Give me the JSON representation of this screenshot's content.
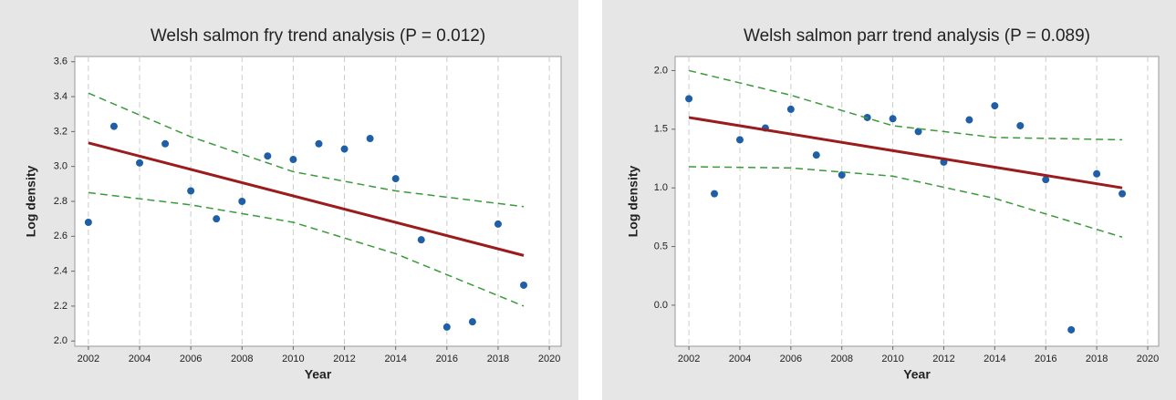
{
  "chart_data": [
    {
      "type": "scatter",
      "title": "Welsh salmon fry trend analysis (P = 0.012)",
      "x_label": "Year",
      "y_label": "Log density",
      "xlim": [
        2001.47,
        2020.46
      ],
      "ylim": [
        1.97,
        3.63
      ],
      "xticks": [
        2002,
        2004,
        2006,
        2008,
        2010,
        2012,
        2014,
        2016,
        2018,
        2020
      ],
      "yticks": [
        {
          "value": 2,
          "label": "2.0"
        },
        {
          "value": 2.2,
          "label": "2.2"
        },
        {
          "value": 2.4,
          "label": "2.4"
        },
        {
          "value": 2.6,
          "label": "2.6"
        },
        {
          "value": 2.8,
          "label": "2.8"
        },
        {
          "value": 3,
          "label": "3.0"
        },
        {
          "value": 3.2,
          "label": "3.2"
        },
        {
          "value": 3.4,
          "label": "3.4"
        },
        {
          "value": 3.6,
          "label": "3.6"
        }
      ],
      "grid": "x",
      "series": [
        {
          "style": "points",
          "color": "#1f5fa8",
          "x": [
            2002,
            2003,
            2004,
            2005,
            2006,
            2007,
            2008,
            2009,
            2010,
            2011,
            2012,
            2013,
            2014,
            2015,
            2016,
            2017,
            2018,
            2019
          ],
          "values": [
            2.68,
            3.23,
            3.02,
            3.13,
            2.86,
            2.7,
            2.8,
            3.06,
            3.04,
            3.13,
            3.1,
            3.16,
            2.93,
            2.58,
            2.08,
            2.11,
            2.67,
            2.32
          ]
        },
        {
          "style": "line",
          "color": "#9b1c1c",
          "x": [
            2002,
            2019
          ],
          "values": [
            3.135,
            2.49
          ]
        },
        {
          "style": "dashed",
          "color": "#3a9a3a",
          "x": [
            2002,
            2006,
            2010,
            2014,
            2019
          ],
          "values": [
            3.42,
            3.17,
            2.97,
            2.86,
            2.77
          ]
        },
        {
          "style": "dashed",
          "color": "#3a9a3a",
          "x": [
            2002,
            2006,
            2010,
            2014,
            2019
          ],
          "values": [
            2.85,
            2.78,
            2.68,
            2.5,
            2.2
          ]
        }
      ]
    },
    {
      "type": "scatter",
      "title": "Welsh salmon parr trend analysis (P = 0.089)",
      "x_label": "Year",
      "y_label": "Log density",
      "xlim": [
        2001.46,
        2020.43
      ],
      "ylim": [
        -0.35,
        2.12
      ],
      "xticks": [
        2002,
        2004,
        2006,
        2008,
        2010,
        2012,
        2014,
        2016,
        2018,
        2020
      ],
      "yticks": [
        {
          "value": 0,
          "label": "0.0"
        },
        0.5,
        {
          "value": 1,
          "label": "1.0"
        },
        1.5,
        {
          "value": 2,
          "label": "2.0"
        }
      ],
      "grid": "x",
      "series": [
        {
          "style": "points",
          "color": "#1f5fa8",
          "x": [
            2002,
            2003,
            2004,
            2005,
            2006,
            2007,
            2008,
            2009,
            2010,
            2011,
            2012,
            2013,
            2014,
            2015,
            2016,
            2017,
            2018,
            2019
          ],
          "values": [
            1.76,
            0.95,
            1.41,
            1.51,
            1.67,
            1.28,
            1.11,
            1.6,
            1.59,
            1.48,
            1.22,
            1.58,
            1.7,
            1.53,
            1.07,
            -0.21,
            1.12,
            0.95
          ]
        },
        {
          "style": "line",
          "color": "#9b1c1c",
          "x": [
            2002,
            2019
          ],
          "values": [
            1.6,
            1.0
          ]
        },
        {
          "style": "dashed",
          "color": "#3a9a3a",
          "x": [
            2002,
            2006,
            2010,
            2014,
            2019
          ],
          "values": [
            2.0,
            1.79,
            1.53,
            1.43,
            1.41
          ]
        },
        {
          "style": "dashed",
          "color": "#3a9a3a",
          "x": [
            2002,
            2006,
            2010,
            2014,
            2019
          ],
          "values": [
            1.18,
            1.17,
            1.1,
            0.91,
            0.58
          ]
        }
      ]
    }
  ]
}
